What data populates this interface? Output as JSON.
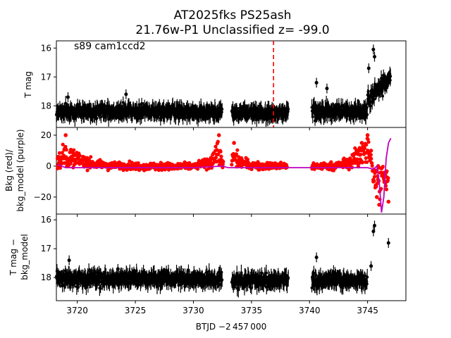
{
  "figure": {
    "title_line1": "AT2025fks  PS25ash",
    "title_line2": "21.76w-P1 Unclassified z= -99.0",
    "xlabel": "BTJD −2 457 000",
    "annotation": "s89 cam1ccd2",
    "colors": {
      "phot": "#000000",
      "bkg": "#ff0000",
      "bkg_model": "#bf00bf",
      "marker_line": "#ff0000"
    }
  },
  "chart_data": [
    {
      "type": "scatter",
      "panel": "top",
      "ylabel": "T mag",
      "ylim": [
        18.75,
        15.75
      ],
      "y_inverted": true,
      "xlim": [
        3718.2,
        3748.3
      ],
      "x_ticks": [
        "3720",
        "3725",
        "3730",
        "3735",
        "3740",
        "3745"
      ],
      "y_ticks": [
        "16",
        "17",
        "18"
      ],
      "vline_x": 3736.9,
      "series": [
        {
          "name": "",
          "style": "black points with error bars",
          "segments": [
            {
              "x_range": [
                3718.2,
                3732.5
              ],
              "y_median": 18.2,
              "scatter": 0.2
            },
            {
              "x_range": [
                3733.3,
                3738.2
              ],
              "y_median": 18.25,
              "scatter": 0.18
            },
            {
              "x_range": [
                3740.2,
                3745.0
              ],
              "y_median": 18.2,
              "scatter": 0.2
            },
            {
              "x_range": [
                3745.0,
                3747.0
              ],
              "y_median": 17.0,
              "scatter": 0.3
            }
          ],
          "outliers": [
            [
              3745.5,
              16.05
            ],
            [
              3745.6,
              16.3
            ],
            [
              3745.1,
              16.7
            ],
            [
              3740.6,
              17.2
            ],
            [
              3741.5,
              17.4
            ],
            [
              3719.2,
              17.7
            ],
            [
              3724.2,
              17.6
            ]
          ]
        }
      ]
    },
    {
      "type": "scatter",
      "panel": "middle",
      "ylabel_line1": "Bkg (red)/",
      "ylabel_line2": "bkg_model (purple)",
      "ylim": [
        -31,
        25
      ],
      "xlim": [
        3718.2,
        3748.3
      ],
      "y_ticks": [
        "20",
        "0",
        "−20"
      ],
      "series": [
        {
          "name": "Bkg",
          "style": "red points",
          "x": [
            3718.3,
            3719.0,
            3719.5,
            3720.0,
            3720.5,
            3721.0,
            3722.0,
            3723.0,
            3724.0,
            3725.0,
            3726.0,
            3728.0,
            3730.0,
            3731.5,
            3732.2,
            3732.5,
            3733.5,
            3734.0,
            3735.0,
            3737.0,
            3738.0,
            3740.5,
            3742.0,
            3743.5,
            3744.5,
            3745.0,
            3745.3,
            3745.5,
            3745.8,
            3746.0,
            3746.5,
            3746.8
          ],
          "y": [
            5,
            20,
            10,
            8,
            6,
            4,
            2,
            0,
            1,
            0,
            0,
            -1,
            0,
            5,
            20,
            0,
            15,
            5,
            1,
            0,
            0,
            0,
            0,
            5,
            15,
            20,
            10,
            -10,
            -20,
            -25,
            -10,
            -23
          ]
        },
        {
          "name": "bkg_model",
          "style": "purple line",
          "x": [
            3718.3,
            3719.0,
            3720.0,
            3725.0,
            3730.0,
            3732.5,
            3733.0,
            3733.5,
            3735.0,
            3738.0,
            3745.0,
            3745.5,
            3745.8,
            3746.0,
            3746.2,
            3746.4,
            3746.6,
            3746.8,
            3747.0
          ],
          "y": [
            1,
            -1,
            -1,
            -1,
            -1,
            0,
            -1,
            -1,
            -1,
            -1,
            -1,
            -2,
            0,
            -10,
            -30,
            -20,
            5,
            15,
            18
          ]
        }
      ]
    },
    {
      "type": "scatter",
      "panel": "bottom",
      "ylabel_line1": "T mag −",
      "ylabel_line2": "bkg_model",
      "ylim": [
        18.8,
        15.8
      ],
      "y_inverted": true,
      "xlim": [
        3718.2,
        3748.3
      ],
      "y_ticks": [
        "16",
        "17",
        "18"
      ],
      "series": [
        {
          "name": "",
          "style": "black points with error bars",
          "segments": [
            {
              "x_range": [
                3718.2,
                3732.5
              ],
              "y_median": 18.05,
              "scatter": 0.22
            },
            {
              "x_range": [
                3733.3,
                3738.2
              ],
              "y_median": 18.1,
              "scatter": 0.22
            },
            {
              "x_range": [
                3740.2,
                3745.0
              ],
              "y_median": 18.1,
              "scatter": 0.22
            }
          ],
          "outliers": [
            [
              3745.6,
              16.2
            ],
            [
              3745.5,
              16.4
            ],
            [
              3746.8,
              16.8
            ],
            [
              3745.3,
              17.6
            ],
            [
              3740.6,
              17.3
            ],
            [
              3719.3,
              17.4
            ],
            [
              3723.5,
              17.7
            ]
          ]
        }
      ]
    }
  ]
}
